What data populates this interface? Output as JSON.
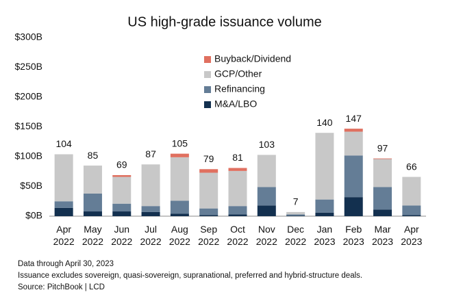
{
  "chart_data": {
    "type": "stacked_bar",
    "title": "US high-grade issuance volume",
    "categories": [
      "Apr 2022",
      "May 2022",
      "Jun 2022",
      "Jul 2022",
      "Aug 2022",
      "Sep 2022",
      "Oct 2022",
      "Nov 2022",
      "Dec 2022",
      "Jan 2023",
      "Feb 2023",
      "Mar 2023",
      "Apr 2023"
    ],
    "series": [
      {
        "name": "M&A/LBO",
        "color": "#13304f",
        "values": [
          14,
          8,
          8,
          7,
          4,
          2,
          3,
          18,
          1,
          6,
          32,
          11,
          2
        ]
      },
      {
        "name": "Refinancing",
        "color": "#647d96",
        "values": [
          11,
          30,
          13,
          10,
          22,
          11,
          14,
          31,
          2,
          22,
          70,
          38,
          16
        ]
      },
      {
        "name": "GCP/Other",
        "color": "#c8c8c8",
        "values": [
          79,
          47,
          45,
          70,
          73,
          60,
          59,
          54,
          4,
          112,
          40,
          47,
          48
        ]
      },
      {
        "name": "Buyback/Dividend",
        "color": "#e07060",
        "values": [
          0,
          0,
          3,
          0,
          6,
          6,
          5,
          0,
          0,
          0,
          5,
          1,
          0
        ]
      }
    ],
    "totals": [
      104,
      85,
      69,
      87,
      105,
      79,
      81,
      103,
      7,
      140,
      147,
      97,
      66
    ],
    "ylim": [
      0,
      300
    ],
    "yticks": [
      {
        "value": 0,
        "label": "$0B"
      },
      {
        "value": 50,
        "label": "$50B"
      },
      {
        "value": 100,
        "label": "$100B"
      },
      {
        "value": 150,
        "label": "$150B"
      },
      {
        "value": 200,
        "label": "$200B"
      },
      {
        "value": 250,
        "label": "$250B"
      },
      {
        "value": 300,
        "label": "$300B"
      }
    ],
    "grid": false,
    "legend": "top",
    "notes": [
      "Data through April 30, 2023",
      "Issuance excludes sovereign, quasi-sovereign, supranational, preferred and hybrid-structure deals.",
      "Source: PitchBook | LCD"
    ]
  }
}
